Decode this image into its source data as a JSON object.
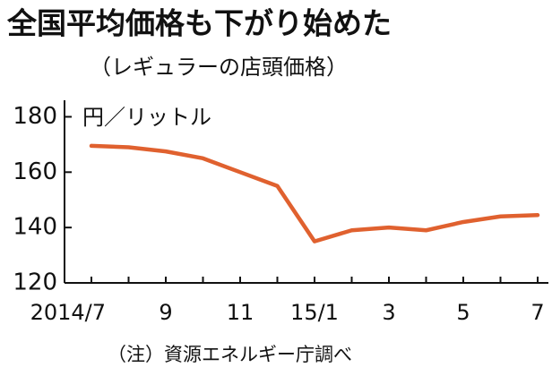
{
  "chart_data": {
    "type": "line",
    "title": "全国平均価格も下がり始めた",
    "subtitle": "（レギュラーの店頭価格）",
    "y_label": "円／リットル",
    "note": "（注）資源エネルギー庁調べ",
    "categories": [
      "2014/7",
      null,
      "9",
      null,
      "11",
      null,
      "15/1",
      null,
      "3",
      null,
      "5",
      null,
      "7"
    ],
    "series": [
      {
        "name": "レギュラー",
        "color": "#e0612f",
        "values": [
          169.5,
          169,
          167.5,
          165,
          160,
          155,
          135,
          139,
          140,
          139,
          142,
          144,
          144.5
        ]
      }
    ],
    "ylim": [
      120,
      185
    ],
    "yticks": [
      120,
      140,
      160,
      180
    ],
    "grid": false
  }
}
